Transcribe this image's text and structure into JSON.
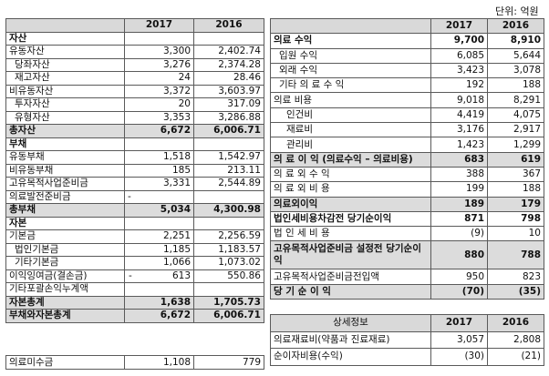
{
  "unit": "단위: 억원",
  "headers": {
    "y1": "2017",
    "y2": "2016"
  },
  "left_rows": [
    {
      "label": "자산",
      "v1": "",
      "v2": "",
      "style": "bold",
      "indent": 0
    },
    {
      "label": "유동자산",
      "v1": "3,300",
      "v2": "2,402.74",
      "indent": 0
    },
    {
      "label": "당좌자산",
      "v1": "3,276",
      "v2": "2,374.28",
      "indent": 1
    },
    {
      "label": "재고자산",
      "v1": "24",
      "v2": "28.46",
      "indent": 1
    },
    {
      "label": "비유동자산",
      "v1": "3,372",
      "v2": "3,603.97",
      "indent": 0
    },
    {
      "label": "투자자산",
      "v1": "20",
      "v2": "317.09",
      "indent": 1
    },
    {
      "label": "유형자산",
      "v1": "3,353",
      "v2": "3,286.88",
      "indent": 1
    },
    {
      "label": "총자산",
      "v1": "6,672",
      "v2": "6,006.71",
      "style": "bold shade",
      "indent": 0
    },
    {
      "label": "부채",
      "v1": "",
      "v2": "",
      "style": "bold",
      "indent": 0
    },
    {
      "label": "유동부채",
      "v1": "1,518",
      "v2": "1,542.97",
      "indent": 0
    },
    {
      "label": "비유동부채",
      "v1": "185",
      "v2": "213.11",
      "indent": 0
    },
    {
      "label": "고유목적사업준비금",
      "v1": "3,331",
      "v2": "2,544.89",
      "indent": 0
    },
    {
      "label": "의료발전준비금",
      "v1": "-",
      "v2": "",
      "indent": 0
    },
    {
      "label": "총부채",
      "v1": "5,034",
      "v2": "4,300.98",
      "style": "bold shade",
      "indent": 0
    },
    {
      "label": "자본",
      "v1": "",
      "v2": "",
      "style": "bold",
      "indent": 0
    },
    {
      "label": "기본금",
      "v1": "2,251",
      "v2": "2,256.59",
      "indent": 0
    },
    {
      "label": "법인기본금",
      "v1": "1,185",
      "v2": "1,183.57",
      "indent": 1
    },
    {
      "label": "기타기본금",
      "v1": "1,066",
      "v2": "1,073.02",
      "indent": 1
    },
    {
      "label": "이익잉여금(결손금)",
      "v1": "613",
      "v2": "550.86",
      "neg": true,
      "indent": 0
    },
    {
      "label": "기타포괄손익누계액",
      "v1": "",
      "v2": "",
      "indent": 0
    },
    {
      "label": "자본총계",
      "v1": "1,638",
      "v2": "1,705.73",
      "style": "bold shade",
      "indent": 0
    },
    {
      "label": "부채와자본총계",
      "v1": "6,672",
      "v2": "6,006.71",
      "style": "bold shade",
      "indent": 0
    }
  ],
  "receivable": {
    "label": "의료미수금",
    "v1": "1,108",
    "v2": "779"
  },
  "right_rows": [
    {
      "label": "의료 수익",
      "v1": "9,700",
      "v2": "8,910",
      "style": "bold",
      "indent": 0
    },
    {
      "label": "입원 수익",
      "v1": "6,085",
      "v2": "5,644",
      "indent": 1
    },
    {
      "label": "외래 수익",
      "v1": "3,423",
      "v2": "3,078",
      "indent": 1
    },
    {
      "label": "기타 의 료 수 익",
      "v1": "192",
      "v2": "188",
      "indent": 1
    },
    {
      "label": "의료 비용",
      "v1": "9,018",
      "v2": "8,291",
      "indent": 0
    },
    {
      "label": "인건비",
      "v1": "4,419",
      "v2": "4,075",
      "indent": 2
    },
    {
      "label": "재료비",
      "v1": "3,176",
      "v2": "2,917",
      "indent": 2
    },
    {
      "label": "관리비",
      "v1": "1,423",
      "v2": "1,299",
      "indent": 2
    },
    {
      "label": "의 료 이 익 (의료수익 – 의료비용)",
      "v1": "683",
      "v2": "619",
      "style": "bold shade",
      "indent": 0
    },
    {
      "label": "의 료 외 수 익",
      "v1": "388",
      "v2": "367",
      "indent": 0
    },
    {
      "label": "의 료 외 비 용",
      "v1": "199",
      "v2": "188",
      "indent": 0
    },
    {
      "label": "의료외이익",
      "v1": "189",
      "v2": "179",
      "style": "bold shade",
      "indent": 0
    },
    {
      "label": "법인세비용차감전 당기순이익",
      "v1": "871",
      "v2": "798",
      "style": "bold",
      "indent": 0
    },
    {
      "label": "법 인 세 비 용",
      "v1": "(9)",
      "v2": "10",
      "indent": 0
    },
    {
      "label": "고유목적사업준비금 설정전 당기순이익",
      "v1": "880",
      "v2": "788",
      "style": "bold shade tall",
      "indent": 0
    },
    {
      "label": "고유목적사업준비금전입액",
      "v1": "950",
      "v2": "823",
      "indent": 0
    },
    {
      "label": "당 기 순 이 익",
      "v1": "(70)",
      "v2": "(35)",
      "style": "bold shade",
      "indent": 0
    }
  ],
  "detail": {
    "title": "상세정보",
    "rows": [
      {
        "label": "의료재료비(약품과 진료재료)",
        "v1": "3,057",
        "v2": "2,808"
      },
      {
        "label": "순이자비용(수익)",
        "v1": "(30)",
        "v2": "(21)"
      }
    ]
  }
}
